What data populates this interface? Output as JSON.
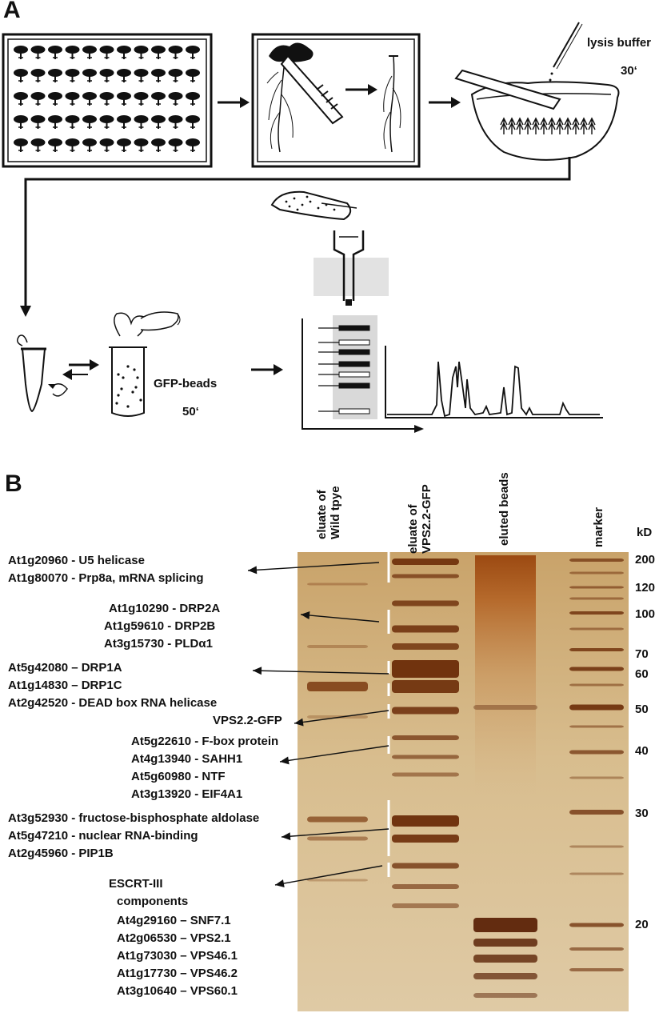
{
  "panel_a": {
    "letter": "A",
    "lysis_label": "lysis buffer",
    "lysis_time": "30‘",
    "beads_label": "GFP-beads",
    "beads_time": "50‘"
  },
  "panel_b": {
    "letter": "B",
    "lane_labels": [
      {
        "line1": "eluate of",
        "line2": "Wild tpye"
      },
      {
        "line1": "eluate of",
        "line2": "VPS2.2-GFP"
      },
      {
        "line1": "eluted beads",
        "line2": ""
      },
      {
        "line1": "marker",
        "line2": ""
      }
    ],
    "kd_unit": "kD",
    "kd_ticks": [
      "200",
      "120",
      "100",
      "70",
      "60",
      "50",
      "40",
      "30",
      "20"
    ],
    "protein_labels": [
      "At1g20960 - U5 helicase",
      "At1g80070 - Prp8a, mRNA splicing",
      "At1g10290 - DRP2A",
      "At1g59610 - DRP2B",
      "At3g15730 - PLDα1",
      "At5g42080 – DRP1A",
      "At1g14830 – DRP1C",
      "At2g42520 - DEAD box RNA helicase",
      "VPS2.2-GFP",
      "At5g22610 - F-box protein",
      "At4g13940 - SAHH1",
      "At5g60980 - NTF",
      "At3g13920 - EIF4A1",
      "At3g52930 - fructose-bisphosphate aldolase",
      "At5g47210 - nuclear RNA-binding",
      "At2g45960 - PIP1B",
      "ESCRT-III",
      "components",
      "At4g29160 – SNF7.1",
      "At2g06530 – VPS2.1",
      "At1g73030 – VPS46.1",
      "At1g17730 – VPS46.2",
      "At3g10640 – VPS60.1"
    ]
  }
}
